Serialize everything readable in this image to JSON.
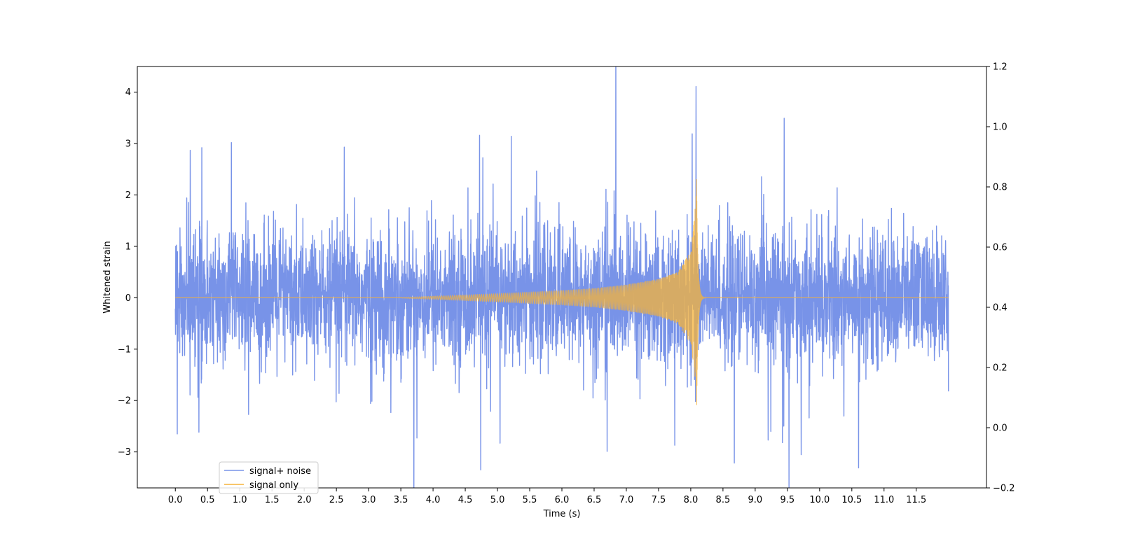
{
  "chart_data": {
    "type": "line",
    "title": "",
    "xlabel": "Time (s)",
    "ylabel": "Whitened strain",
    "xlim": [
      -0.59,
      12.59
    ],
    "ylim": [
      -3.7,
      4.5
    ],
    "ylim_right": [
      -0.2,
      1.2
    ],
    "x_ticks": [
      0.0,
      0.5,
      1.0,
      1.5,
      2.0,
      2.5,
      3.0,
      3.5,
      4.0,
      4.5,
      5.0,
      5.5,
      6.0,
      6.5,
      7.0,
      7.5,
      8.0,
      8.5,
      9.0,
      9.5,
      10.0,
      10.5,
      11.0,
      11.5
    ],
    "x_tick_labels": [
      "0.0",
      "0.5",
      "1.0",
      "1.5",
      "2.0",
      "2.5",
      "3.0",
      "3.5",
      "4.0",
      "4.5",
      "5.0",
      "5.5",
      "6.0",
      "6.5",
      "7.0",
      "7.5",
      "8.0",
      "8.5",
      "9.0",
      "9.5",
      "10.0",
      "10.5",
      "11.0",
      "11.5"
    ],
    "y_ticks": [
      -3,
      -2,
      -1,
      0,
      1,
      2,
      3,
      4
    ],
    "y_tick_labels": [
      "−3",
      "−2",
      "−1",
      "0",
      "1",
      "2",
      "3",
      "4"
    ],
    "y_ticks_right": [
      -0.2,
      0.0,
      0.2,
      0.4,
      0.6,
      0.8,
      1.0,
      1.2
    ],
    "y_tick_labels_right": [
      "−0.2",
      "0.0",
      "0.2",
      "0.4",
      "0.6",
      "0.8",
      "1.0",
      "1.2"
    ],
    "grid": false,
    "legend_position": "lower-left",
    "series": [
      {
        "name": "signal+ noise",
        "color": "#7893e8",
        "x_start": 0.0,
        "x_end": 12.0,
        "noise_sigma": 0.62,
        "peak_envelope": [
          [
            0.0,
            1.2
          ],
          [
            0.5,
            1.5
          ],
          [
            1.0,
            1.5
          ],
          [
            2.0,
            1.5
          ],
          [
            3.0,
            1.5
          ],
          [
            4.0,
            1.5
          ],
          [
            5.0,
            1.5
          ],
          [
            6.0,
            1.5
          ],
          [
            7.0,
            1.5
          ],
          [
            8.0,
            1.5
          ],
          [
            11.95,
            1.5
          ]
        ],
        "notable_peaks": [
          [
            0.03,
            -2.65
          ],
          [
            0.23,
            2.87
          ],
          [
            0.41,
            2.92
          ],
          [
            0.87,
            3.02
          ],
          [
            2.62,
            2.93
          ],
          [
            4.72,
            3.16
          ],
          [
            4.74,
            -3.35
          ],
          [
            5.04,
            -2.83
          ],
          [
            6.7,
            -2.99
          ],
          [
            7.75,
            -2.87
          ],
          [
            8.02,
            3.19
          ],
          [
            8.08,
            4.11
          ],
          [
            9.2,
            -2.77
          ],
          [
            3.75,
            -2.73
          ]
        ]
      },
      {
        "name": "signal only",
        "color": "#f5b33a",
        "x_start": 0.0,
        "x_end": 12.0,
        "merger_time": 8.09,
        "envelope": [
          [
            3.5,
            0.005
          ],
          [
            4.0,
            0.03
          ],
          [
            5.0,
            0.08
          ],
          [
            6.0,
            0.14
          ],
          [
            6.5,
            0.18
          ],
          [
            7.0,
            0.25
          ],
          [
            7.5,
            0.36
          ],
          [
            7.8,
            0.5
          ],
          [
            8.0,
            0.9
          ],
          [
            8.06,
            1.6
          ],
          [
            8.09,
            2.3
          ]
        ],
        "ringdown_decay": 0.02
      }
    ]
  }
}
